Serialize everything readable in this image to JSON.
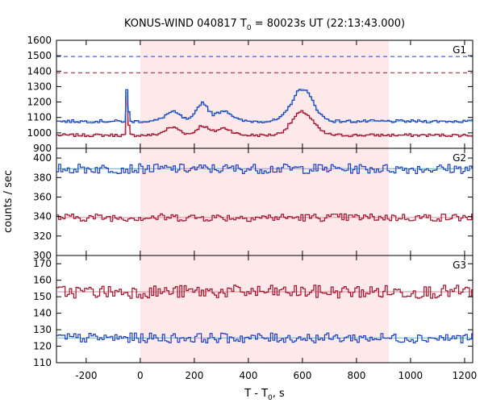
{
  "chart_data": {
    "type": "line",
    "title": "KONUS-WIND 040817 T",
    "title_sub": "0",
    "title_rest": " = 80023s UT (22:13:43.000)",
    "xlabel": "T - T",
    "xlabel_sub": "0",
    "xlabel_rest": ", s",
    "ylabel": "counts / sec",
    "xlim": [
      -310,
      1230
    ],
    "x_ticks": [
      -200,
      0,
      200,
      400,
      600,
      800,
      1000,
      1200
    ],
    "shaded_interval": [
      0,
      920
    ],
    "colors": {
      "red": "#a0102a",
      "blue": "#1f3fbf",
      "cyan": "#6fc4d6",
      "pink": "#e89aa6",
      "shade": "#fde8ea"
    },
    "panels": [
      {
        "name": "G1",
        "ylim": [
          900,
          1600
        ],
        "y_ticks": [
          900,
          1000,
          1100,
          1200,
          1300,
          1400,
          1500,
          1600
        ],
        "hlines": [
          {
            "y": 1495,
            "color": "blue"
          },
          {
            "y": 1390,
            "color": "red"
          }
        ],
        "series": [
          {
            "color": "red",
            "fit": "pink",
            "base": 985,
            "noise": 10,
            "bumps": [
              [
                -48,
                3,
                380
              ],
              [
                -40,
                2,
                140
              ],
              [
                120,
                40,
                50
              ],
              [
                230,
                30,
                60
              ],
              [
                310,
                40,
                45
              ],
              [
                600,
                55,
                150
              ]
            ]
          },
          {
            "color": "blue",
            "fit": "cyan",
            "base": 1075,
            "noise": 10,
            "bumps": [
              [
                -48,
                3,
                310
              ],
              [
                -40,
                2,
                140
              ],
              [
                120,
                40,
                60
              ],
              [
                230,
                30,
                120
              ],
              [
                310,
                40,
                70
              ],
              [
                600,
                55,
                210
              ]
            ]
          }
        ]
      },
      {
        "name": "G2",
        "ylim": [
          300,
          410
        ],
        "y_ticks": [
          300,
          320,
          340,
          360,
          380,
          400
        ],
        "hlines": [],
        "series": [
          {
            "color": "blue",
            "fit": "cyan",
            "base": 389,
            "noise": 5,
            "bumps": []
          },
          {
            "color": "red",
            "fit": "pink",
            "base": 339,
            "noise": 4,
            "bumps": []
          }
        ]
      },
      {
        "name": "G3",
        "ylim": [
          110,
          175
        ],
        "y_ticks": [
          110,
          120,
          130,
          140,
          150,
          160,
          170
        ],
        "hlines": [],
        "series": [
          {
            "color": "red",
            "fit": "pink",
            "base": 153,
            "noise": 4,
            "bumps": []
          },
          {
            "color": "blue",
            "fit": "cyan",
            "base": 125,
            "noise": 3,
            "bumps": []
          }
        ]
      }
    ]
  }
}
